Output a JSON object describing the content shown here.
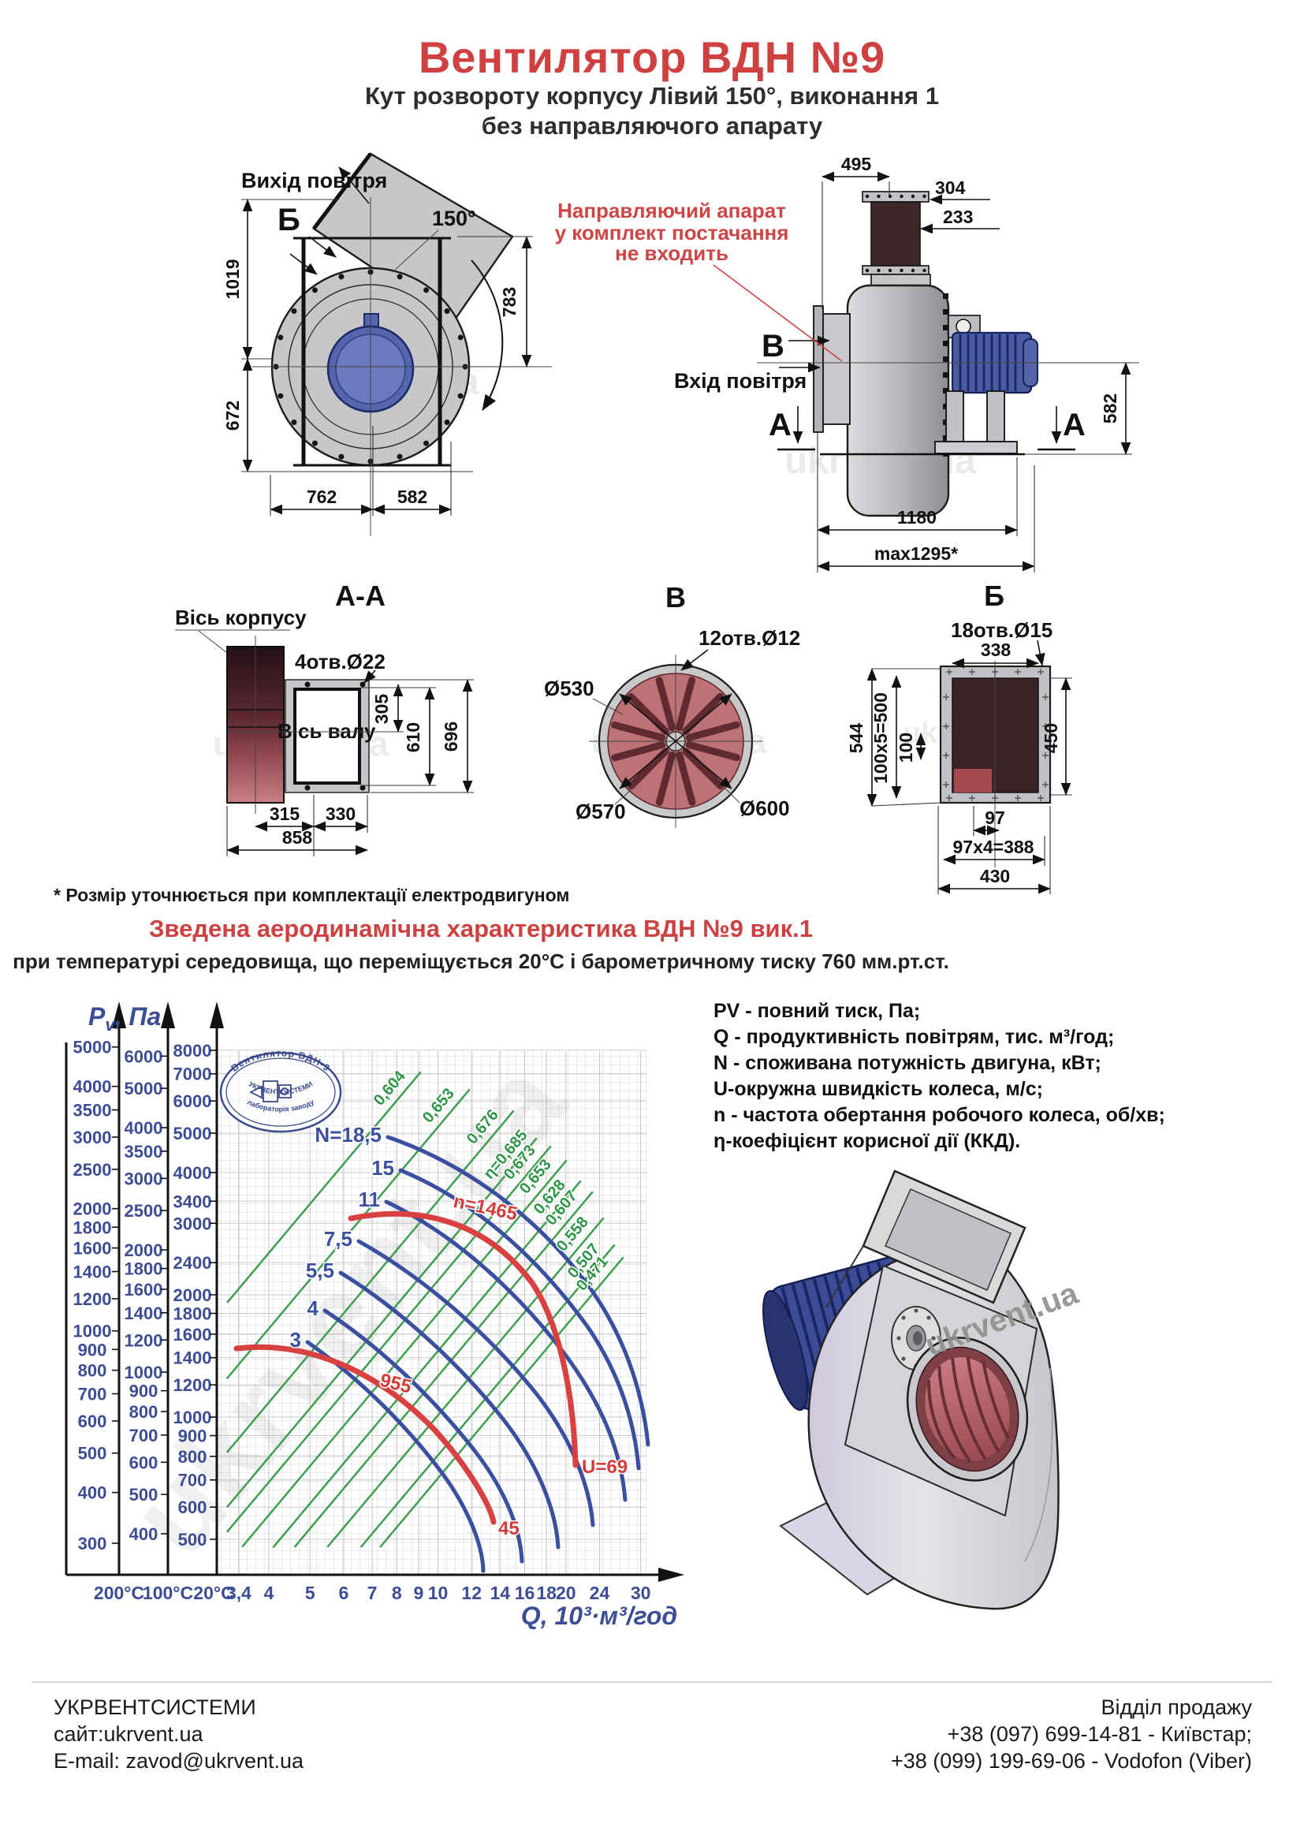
{
  "watermark": {
    "text": "ukrvent.ua"
  },
  "header": {
    "title": "Вентилятор  ВДН №9",
    "subtitle1": "Кут розвороту корпусу Лівий 150°, виконання 1",
    "subtitle2": "без направляючого апарату"
  },
  "front_view": {
    "air_out": "Вихід повітря",
    "mark": "Б",
    "angle": "150°",
    "d1019": "1019",
    "d783": "783",
    "d672": "672",
    "d762": "762",
    "d582": "582"
  },
  "side_view": {
    "note1": "Направляючий апарат",
    "note2": "у комплект постачання",
    "note3": "не входить",
    "mark_v": "В",
    "air_in": "Вхід повітря",
    "mark_a": "А",
    "d495": "495",
    "d304": "304",
    "d233": "233",
    "d582": "582",
    "d1180": "1180",
    "dmax": "max1295*"
  },
  "section_aa": {
    "title": "А-А",
    "axis_housing": "Вісь корпусу",
    "axis_shaft": "Вісь валу",
    "holes": "4отв.Ø22",
    "d305": "305",
    "d610": "610",
    "d696": "696",
    "d315": "315",
    "d330": "330",
    "d858": "858"
  },
  "section_v": {
    "title": "В",
    "holes": "12отв.Ø12",
    "d530": "Ø530",
    "d570": "Ø570",
    "d600": "Ø600"
  },
  "section_b": {
    "title": "Б",
    "holes": "18отв.Ø15",
    "d338": "338",
    "d544": "544",
    "d500": "100х5=500",
    "d100": "100",
    "d450": "450",
    "d97": "97",
    "d388": "97х4=388",
    "d430": "430"
  },
  "footnote": "* Розмір уточнюється при комплектації електродвигуном",
  "chart": {
    "title": "Зведена аеродинамічна характеристика ВДН №9 вик.1",
    "subtitle": "при температурі середовища, що переміщується 20°С і барометричному тиску 760 мм.рт.ст.",
    "y_label_p": "P",
    "y_label_sub": "v",
    "y_label_rest": ", Па",
    "x_label": "Q, 10³·м³/год",
    "stamp": {
      "line1": "Вентилятор ВДН-9",
      "line2": "лабораторія заводу",
      "line3": "УКРВЕНТСИСТЕМИ"
    }
  },
  "chart_data": {
    "type": "line",
    "title": "Зведена аеродинамічна характеристика ВДН №9 вик.1",
    "xlabel": "Q, 10³·м³/год",
    "ylabel": "Pv, Па",
    "x_scale": "log",
    "x_ticks": [
      "3,4",
      "4",
      "5",
      "6",
      "7",
      "8",
      "9",
      "10",
      "12",
      "14",
      "16",
      "18",
      "20",
      "24",
      "30"
    ],
    "pressure_scales": [
      {
        "temp": "200°C",
        "ticks": [
          5000,
          4000,
          3500,
          3000,
          2500,
          2000,
          1800,
          1600,
          1400,
          1200,
          1000,
          900,
          800,
          700,
          600,
          500,
          400,
          300
        ]
      },
      {
        "temp": "100°C",
        "ticks": [
          6000,
          5000,
          4000,
          3500,
          3000,
          2500,
          2000,
          1800,
          1600,
          1400,
          1200,
          1000,
          900,
          800,
          700,
          600,
          500,
          400
        ]
      },
      {
        "temp": "20°C",
        "ticks": [
          8000,
          7000,
          6000,
          5000,
          4000,
          3400,
          3000,
          2400,
          2000,
          1800,
          1600,
          1400,
          1200,
          1000,
          900,
          800,
          700,
          600,
          500
        ]
      }
    ],
    "power_curves_kw": [
      "N=18,5",
      "15",
      "11",
      "7,5",
      "5,5",
      "4",
      "3"
    ],
    "efficiency_lines": [
      "0,604",
      "0,653",
      "0,676",
      "η=0,685",
      "0,673",
      "0,653",
      "0,628",
      "0,607",
      "0,558",
      "0,507",
      "0,471"
    ],
    "speed_curves": [
      {
        "label": "n=1465",
        "end_label": "U=69"
      },
      {
        "label": "955",
        "end_label": "45"
      }
    ],
    "grid": true,
    "legend_position": "right"
  },
  "legend": {
    "lines": [
      "PV - повний тиск, Па;",
      "Q - продуктивність повітрям, тис. м³/год;",
      "N - споживана потужність двигуна, кВт;",
      "U-окружна швидкість колеса, м/с;",
      "n - частота обертання робочого колеса, об/хв;",
      "η-коефіцієнт корисної дії (ККД)."
    ]
  },
  "footer": {
    "company": "УКРВЕНТСИСТЕМИ",
    "site": "сайт:ukrvent.ua",
    "email": "E-mail: zavod@ukrvent.ua",
    "sales": "Відділ продажу",
    "phone1": "+38 (097) 699-14-81 - Київстар;",
    "phone2": "+38 (099) 199-69-06 - Vodofon (Viber)"
  }
}
